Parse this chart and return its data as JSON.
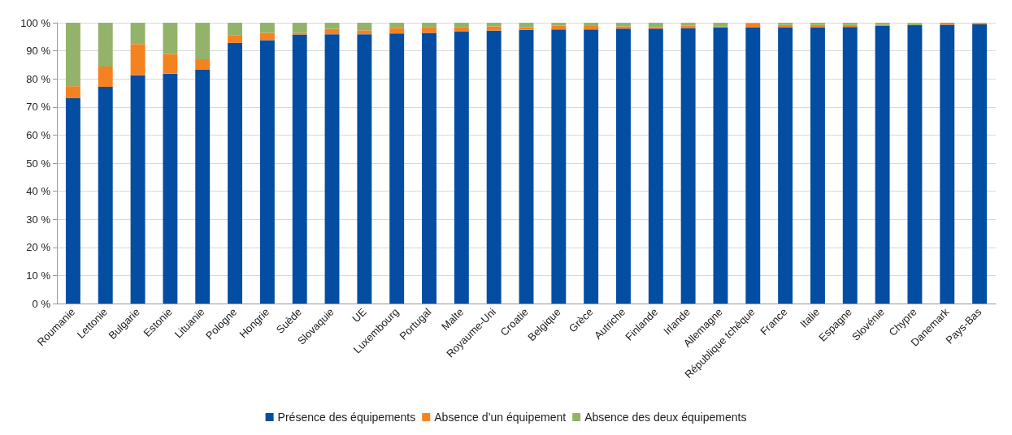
{
  "chart_data": {
    "type": "bar",
    "stacked": true,
    "categories": [
      "Roumanie",
      "Lettonie",
      "Bulgarie",
      "Estonie",
      "Lituanie",
      "Pologne",
      "Hongrie",
      "Suède",
      "Slovaquie",
      "UE",
      "Luxembourg",
      "Portugal",
      "Malte",
      "Royaume-Uni",
      "Croatie",
      "Belgique",
      "Grèce",
      "Autriche",
      "Finlande",
      "Irlande",
      "Allemagne",
      "République tchèque",
      "France",
      "Italie",
      "Espagne",
      "Slovénie",
      "Chypre",
      "Danemark",
      "Pays-Bas"
    ],
    "series": [
      {
        "name": "Présence des équipements",
        "color": "#034ea2",
        "values": [
          73.1,
          77.2,
          81.3,
          81.9,
          83.4,
          92.8,
          93.8,
          95.8,
          95.9,
          95.9,
          96.2,
          96.4,
          96.8,
          97.2,
          97.5,
          97.6,
          97.6,
          97.9,
          97.9,
          98.1,
          98.3,
          98.4,
          98.4,
          98.4,
          98.5,
          99.0,
          99.1,
          99.3,
          99.4
        ]
      },
      {
        "name": "Absence d’un équipement",
        "color": "#f58220",
        "values": [
          4.3,
          7.2,
          11.1,
          7.0,
          3.6,
          2.8,
          2.6,
          0.6,
          1.9,
          1.4,
          2.0,
          1.9,
          1.5,
          1.5,
          0.9,
          1.4,
          1.5,
          0.8,
          0.5,
          0.9,
          0.3,
          1.5,
          0.8,
          0.8,
          0.7,
          0.3,
          null,
          0.7,
          0.5
        ]
      },
      {
        "name": "Absence des deux équipements",
        "color": "#94b36a",
        "values": [
          22.6,
          15.6,
          7.6,
          11.1,
          13.0,
          4.4,
          3.6,
          3.6,
          2.2,
          2.7,
          1.8,
          1.7,
          1.7,
          1.3,
          1.6,
          1.0,
          0.9,
          1.3,
          1.6,
          1.0,
          1.4,
          null,
          0.8,
          0.8,
          0.8,
          0.7,
          0.8,
          0.0,
          null
        ]
      }
    ],
    "ylim": [
      0,
      100
    ],
    "yticks": [
      {
        "value": 0,
        "label": "0 %"
      },
      {
        "value": 10,
        "label": "10 %"
      },
      {
        "value": 20,
        "label": "20 %"
      },
      {
        "value": 30,
        "label": "30 %"
      },
      {
        "value": 40,
        "label": "40 %"
      },
      {
        "value": 50,
        "label": "50 %"
      },
      {
        "value": 60,
        "label": "60 %"
      },
      {
        "value": 70,
        "label": "70 %"
      },
      {
        "value": 80,
        "label": "80 %"
      },
      {
        "value": 90,
        "label": "90 %"
      },
      {
        "value": 100,
        "label": "100 %"
      }
    ],
    "grid": "y",
    "legend": "bottom"
  }
}
